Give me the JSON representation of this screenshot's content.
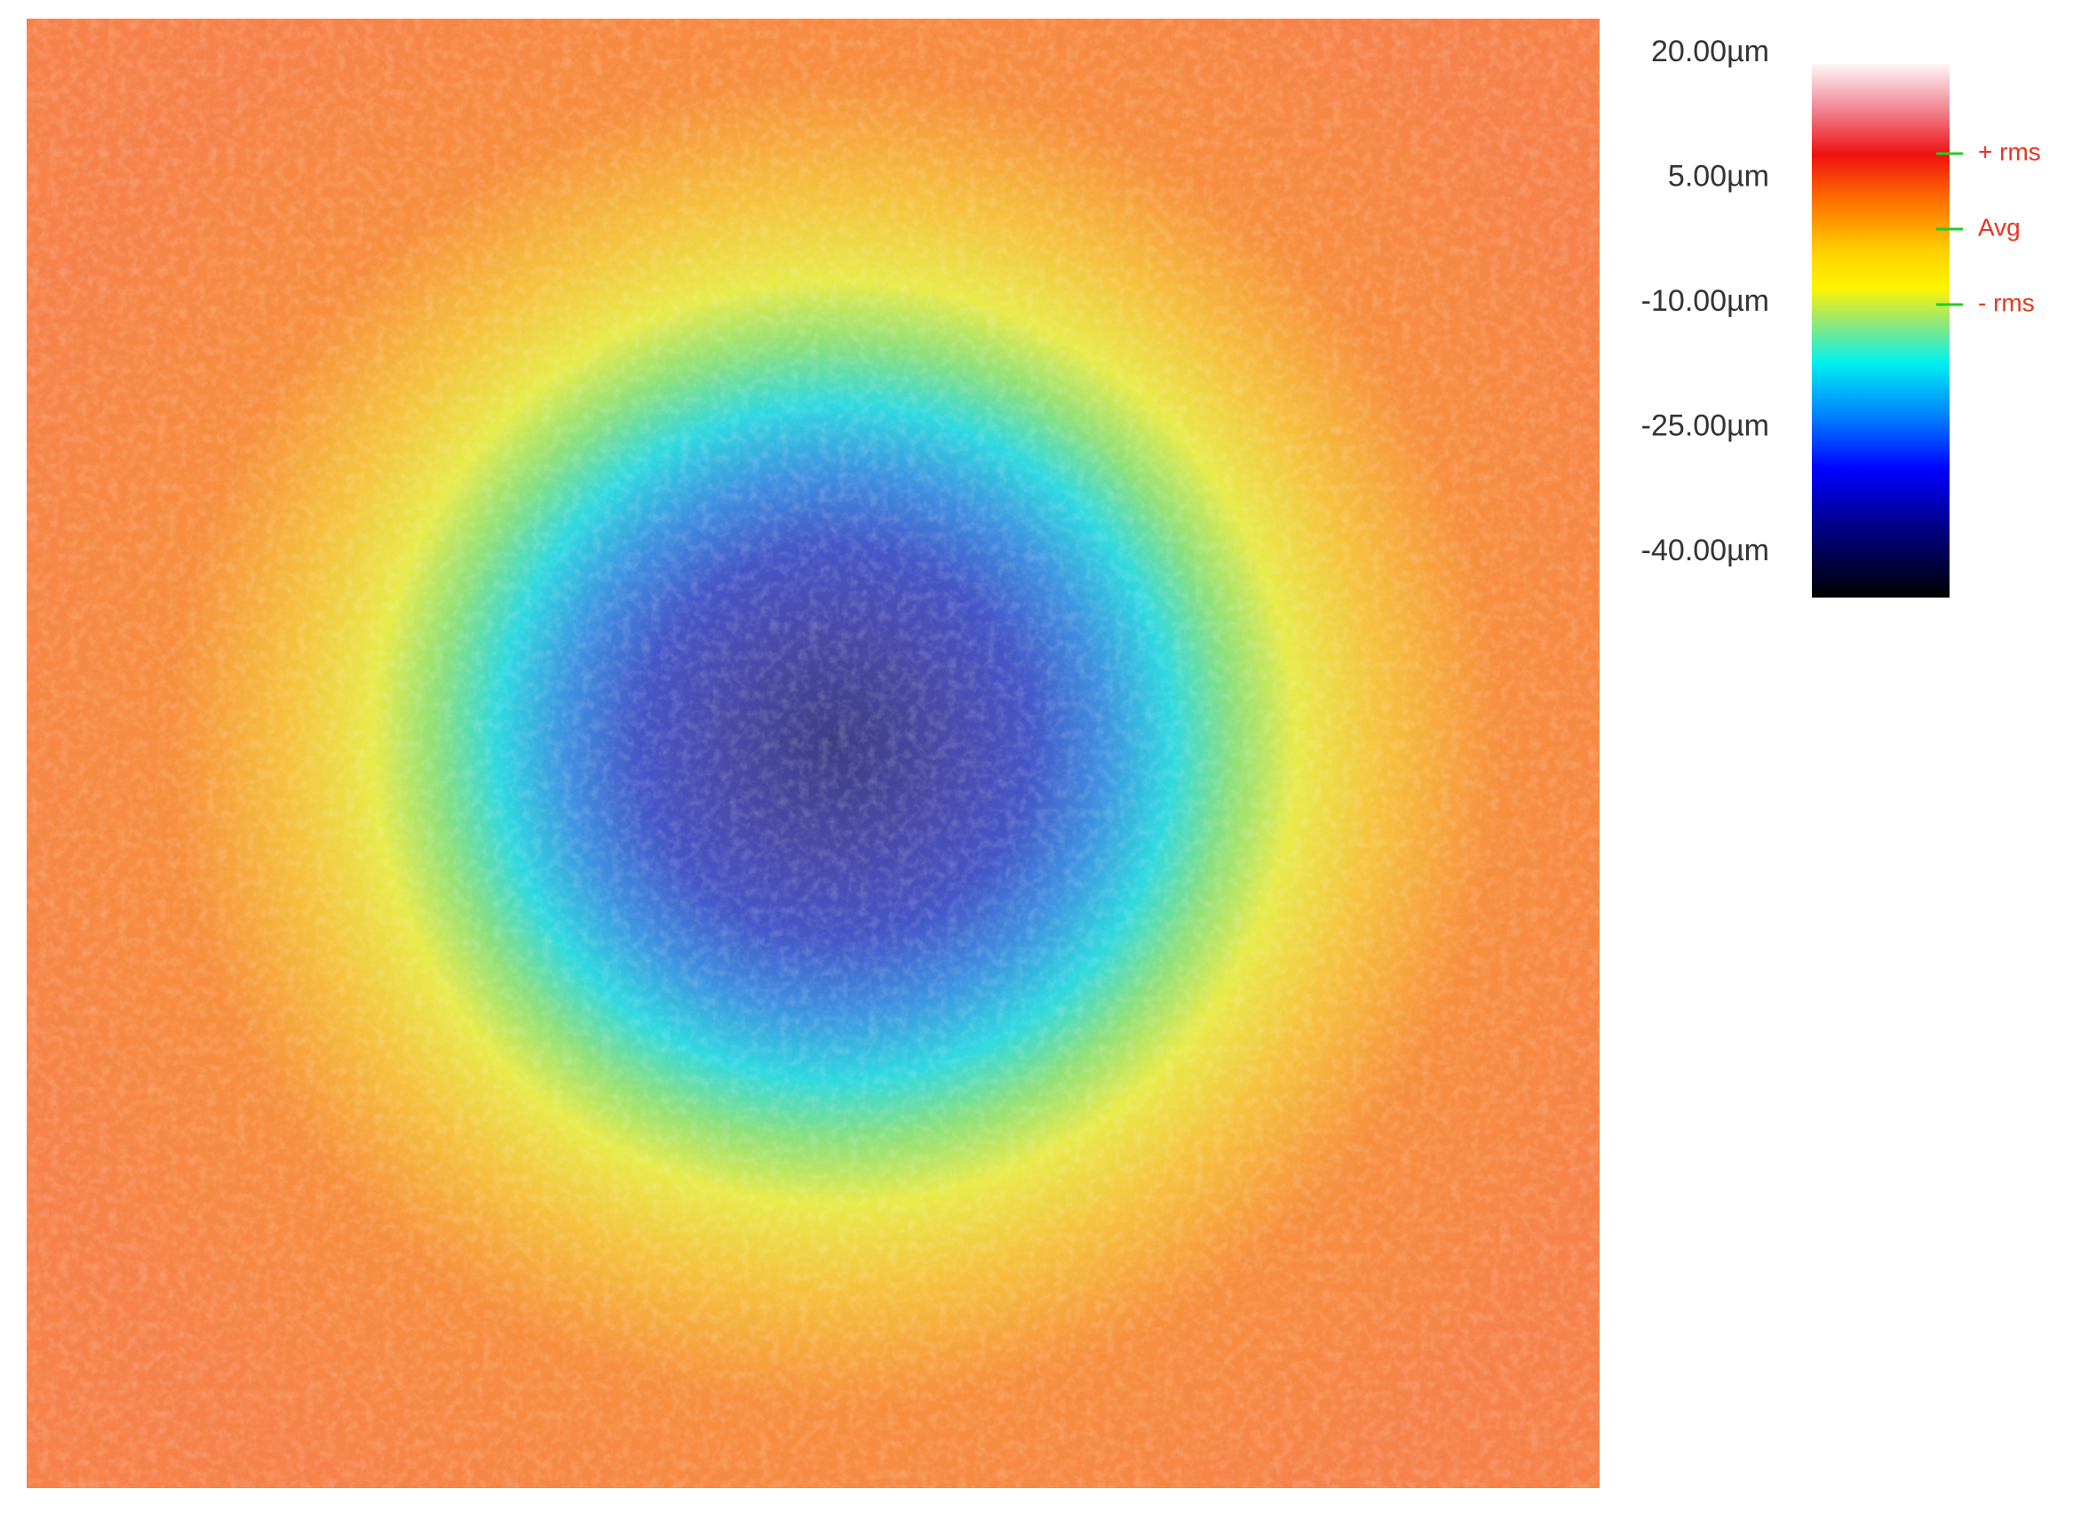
{
  "scale_labels": [
    "20.00µm",
    "5.00µm",
    "-10.00µm",
    "-25.00µm",
    "-40.00µm"
  ],
  "markers": [
    "+ rms",
    "Avg",
    "- rms"
  ]
}
